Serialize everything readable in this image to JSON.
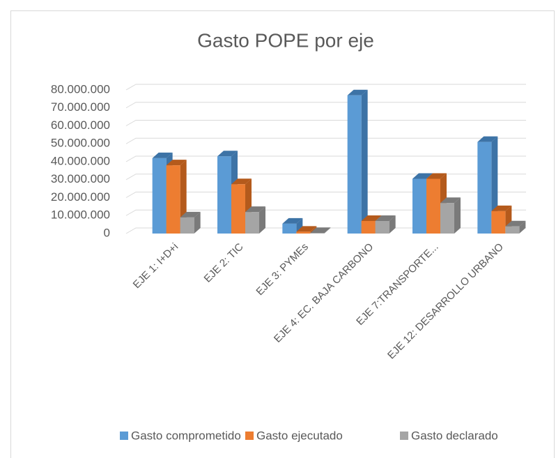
{
  "chart_data": {
    "type": "bar3d",
    "title": "Gasto POPE por eje",
    "categories": [
      "EJE 1: I+D+i",
      "EJE 2: TIC",
      "EJE 3: PYMEs",
      "EJE 4: EC. BAJA CARBONO",
      "EJE 7:TRANSPORTE...",
      "EJE 12: DESARROLLO URBANO"
    ],
    "series": [
      {
        "name": "Gasto comprometido",
        "color": "#5b9bd5",
        "side": "#3d73a6",
        "values": [
          42000000,
          43000000,
          5500000,
          77000000,
          30500000,
          51000000
        ]
      },
      {
        "name": "Gasto ejecutado",
        "color": "#ed7d31",
        "side": "#b45a1c",
        "values": [
          38000000,
          27500000,
          1000000,
          7000000,
          30500000,
          12500000
        ]
      },
      {
        "name": "Gasto declarado",
        "color": "#a5a5a5",
        "side": "#7a7a7a",
        "values": [
          9000000,
          12000000,
          300000,
          7000000,
          17000000,
          4000000
        ]
      }
    ],
    "ylim": [
      0,
      80000000
    ],
    "yticks": [
      0,
      {
        "value": 10000000,
        "label": "10.000.000"
      },
      {
        "value": 20000000,
        "label": "20.000.000"
      },
      {
        "value": 30000000,
        "label": "30.000.000"
      },
      {
        "value": 40000000,
        "label": "40.000.000"
      },
      {
        "value": 50000000,
        "label": "50.000.000"
      },
      {
        "value": 60000000,
        "label": "60.000.000"
      },
      {
        "value": 70000000,
        "label": "70.000.000"
      },
      {
        "value": 80000000,
        "label": "80.000.000"
      }
    ],
    "grid": true,
    "legend": "bottom"
  }
}
